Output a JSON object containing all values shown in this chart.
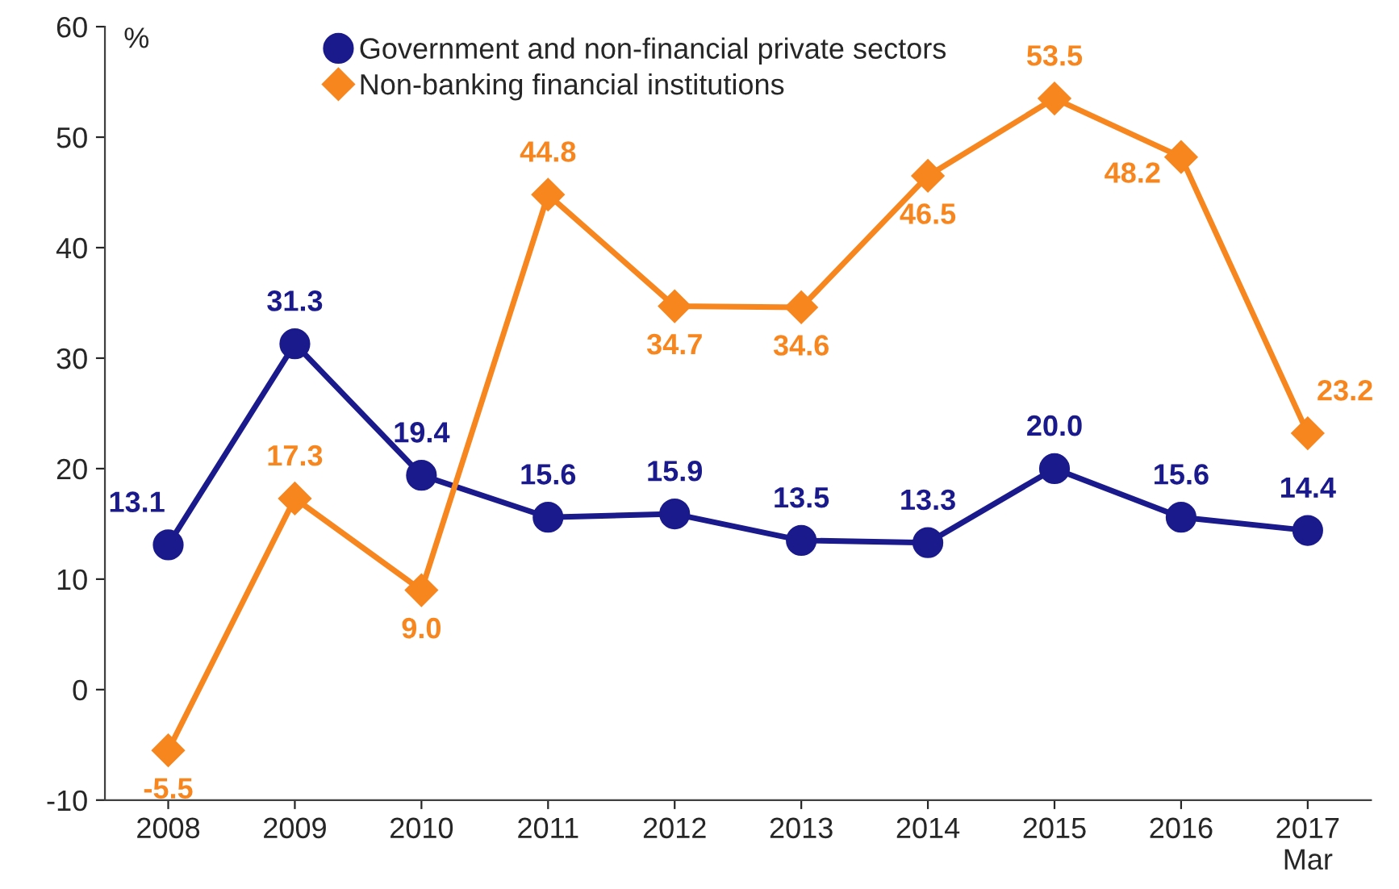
{
  "chart_data": {
    "type": "line",
    "ylabel": "%",
    "categories": [
      "2008",
      "2009",
      "2010",
      "2011",
      "2012",
      "2013",
      "2014",
      "2015",
      "2016",
      "2017\nMar"
    ],
    "series": [
      {
        "name": "Government and non-financial private sectors",
        "color": "#1a1a8c",
        "marker": "circle",
        "values": [
          13.1,
          31.3,
          19.4,
          15.6,
          15.9,
          13.5,
          13.3,
          20.0,
          15.6,
          14.4
        ],
        "value_labels": [
          "13.1",
          "31.3",
          "19.4",
          "15.6",
          "15.9",
          "13.5",
          "13.3",
          "20.0",
          "15.6",
          "14.4"
        ]
      },
      {
        "name": "Non-banking financial institutions",
        "color": "#f7861e",
        "marker": "diamond",
        "values": [
          -5.5,
          17.3,
          9.0,
          44.8,
          34.7,
          34.6,
          46.5,
          53.5,
          48.2,
          23.2
        ],
        "value_labels": [
          "-5.5",
          "17.3",
          "9.0",
          "44.8",
          "34.7",
          "34.6",
          "46.5",
          "53.5",
          "48.2",
          "23.2"
        ]
      }
    ],
    "ylim": [
      -10,
      60
    ],
    "yticks": [
      -10,
      0,
      10,
      20,
      30,
      40,
      50,
      60
    ],
    "grid": false,
    "legend": "top",
    "line_style": "solid"
  }
}
